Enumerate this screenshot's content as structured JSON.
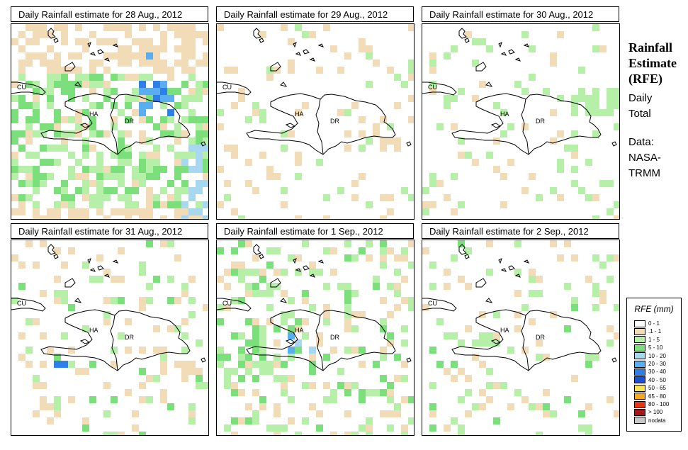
{
  "panels": [
    {
      "title": "Daily Rainfall estimate for  28 Aug., 2012",
      "labels": {
        "cu": "CU",
        "ha": "HA",
        "dr": "DR"
      }
    },
    {
      "title": "Daily Rainfall estimate for  29 Aug., 2012",
      "labels": {
        "cu": "CU",
        "ha": "HA",
        "dr": "DR"
      }
    },
    {
      "title": "Daily Rainfall estimate for  30 Aug., 2012",
      "labels": {
        "cu": "CU",
        "ha": "HA",
        "dr": "DR"
      }
    },
    {
      "title": "Daily Rainfall estimate for  31 Aug., 2012",
      "labels": {
        "cu": "CU",
        "ha": "HA",
        "dr": "DR"
      }
    },
    {
      "title": "Daily Rainfall estimate for  1 Sep., 2012",
      "labels": {
        "cu": "CU",
        "ha": "HA",
        "dr": "DR"
      }
    },
    {
      "title": "Daily Rainfall estimate for  2 Sep., 2012",
      "labels": {
        "cu": "CU",
        "ha": "HA",
        "dr": "DR"
      }
    }
  ],
  "side": {
    "title_line1": "Rainfall",
    "title_line2": "Estimate",
    "title_line3": "(RFE)",
    "daily": "Daily",
    "total": "Total",
    "data": "Data:",
    "nasa": "NASA-",
    "trmm": "TRMM"
  },
  "legend": {
    "title": "RFE (mm)",
    "items": [
      {
        "label": "0 - 1",
        "color": "#ffffff"
      },
      {
        "label": ".1 - 1",
        "color": "#f2dcb8"
      },
      {
        "label": "1 - 5",
        "color": "#b5efa8"
      },
      {
        "label": "5 - 10",
        "color": "#7be07b"
      },
      {
        "label": "10 - 20",
        "color": "#a8d8f0"
      },
      {
        "label": "20 - 30",
        "color": "#5aaef0"
      },
      {
        "label": "30 - 40",
        "color": "#2f7fe8"
      },
      {
        "label": "40 - 50",
        "color": "#1b50d0"
      },
      {
        "label": "50 - 65",
        "color": "#f7e25a"
      },
      {
        "label": "65 - 80",
        "color": "#f5a623"
      },
      {
        "label": "80 - 100",
        "color": "#e03a1a"
      },
      {
        "label": "> 100",
        "color": "#a01818"
      },
      {
        "label": "nodata",
        "color": "#c8c8c8"
      }
    ]
  }
}
